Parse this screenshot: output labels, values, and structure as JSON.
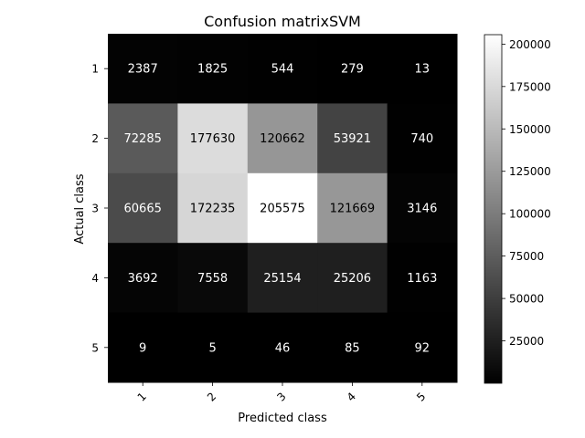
{
  "chart_data": {
    "type": "heatmap",
    "title": "Confusion matrixSVM",
    "xlabel": "Predicted class",
    "ylabel": "Actual class",
    "x_categories": [
      "1",
      "2",
      "3",
      "4",
      "5"
    ],
    "y_categories": [
      "1",
      "2",
      "3",
      "4",
      "5"
    ],
    "values": [
      [
        2387,
        1825,
        544,
        279,
        13
      ],
      [
        72285,
        177630,
        120662,
        53921,
        740
      ],
      [
        60665,
        172235,
        205575,
        121669,
        3146
      ],
      [
        3692,
        7558,
        25154,
        25206,
        1163
      ],
      [
        9,
        5,
        46,
        85,
        92
      ]
    ],
    "colormap": "gray",
    "colorbar": {
      "min": 5,
      "max": 205575,
      "ticks": [
        25000,
        50000,
        75000,
        100000,
        125000,
        150000,
        175000,
        200000
      ],
      "tick_labels": [
        "25000",
        "50000",
        "75000",
        "100000",
        "125000",
        "150000",
        "175000",
        "200000"
      ]
    },
    "x_tick_rotation_deg": 45,
    "grid": false
  }
}
